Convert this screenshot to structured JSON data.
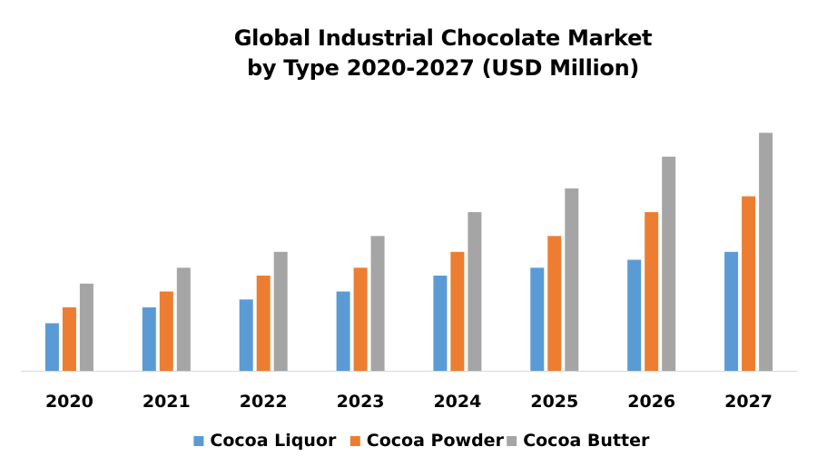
{
  "chart_data": {
    "type": "bar",
    "title_lines": [
      "Global Industrial Chocolate Market",
      "by Type 2020-2027 (USD Million)"
    ],
    "categories": [
      "2020",
      "2021",
      "2022",
      "2023",
      "2024",
      "2025",
      "2026",
      "2027"
    ],
    "series": [
      {
        "name": "Cocoa Liquor",
        "color": "#5b9bd5",
        "values": [
          3.0,
          4.0,
          4.5,
          5.0,
          6.0,
          6.5,
          7.0,
          7.5
        ]
      },
      {
        "name": "Cocoa Powder",
        "color": "#ed7d31",
        "values": [
          4.0,
          5.0,
          6.0,
          6.5,
          7.5,
          8.5,
          10.0,
          11.0
        ]
      },
      {
        "name": "Cocoa Butter",
        "color": "#a5a5a5",
        "values": [
          5.5,
          6.5,
          7.5,
          8.5,
          10.0,
          11.5,
          13.5,
          15.0
        ]
      }
    ],
    "ylim": [
      0,
      16
    ],
    "y_axis_shown": false,
    "grid": false,
    "legend_position": "bottom"
  }
}
